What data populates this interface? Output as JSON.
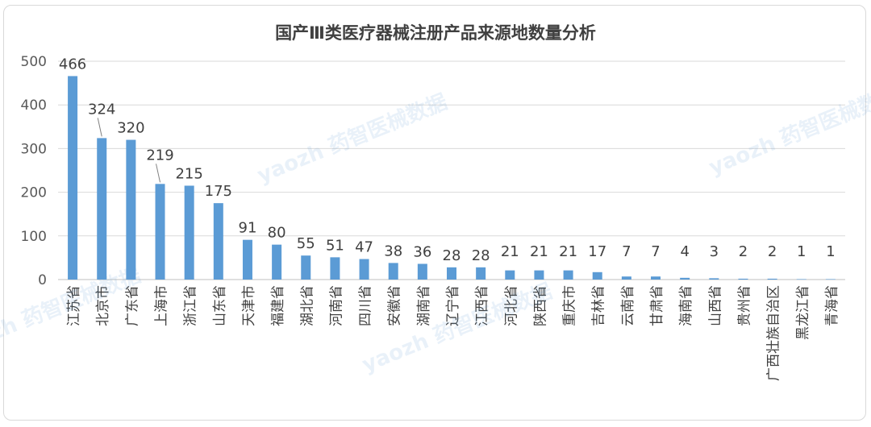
{
  "chart_data": {
    "type": "bar",
    "title": "国产Ⅲ类医疗器械注册产品来源地数量分析",
    "xlabel": "",
    "ylabel": "",
    "ylim": [
      0,
      500
    ],
    "yticks": [
      0,
      100,
      200,
      300,
      400,
      500
    ],
    "grid": true,
    "legend": "none",
    "bar_color": "#5b9bd5",
    "categories": [
      "江苏省",
      "北京市",
      "广东省",
      "上海市",
      "浙江省",
      "山东省",
      "天津市",
      "福建省",
      "湖北省",
      "河南省",
      "四川省",
      "安徽省",
      "湖南省",
      "辽宁省",
      "江西省",
      "河北省",
      "陕西省",
      "重庆市",
      "吉林省",
      "云南省",
      "甘肃省",
      "海南省",
      "山西省",
      "贵州省",
      "广西壮族自治区",
      "黑龙江省",
      "青海省"
    ],
    "values": [
      466,
      324,
      320,
      219,
      215,
      175,
      91,
      80,
      55,
      51,
      47,
      38,
      36,
      28,
      28,
      21,
      21,
      21,
      17,
      7,
      7,
      4,
      3,
      2,
      2,
      1,
      1
    ]
  },
  "watermark": "yaozh 药智医械数据"
}
